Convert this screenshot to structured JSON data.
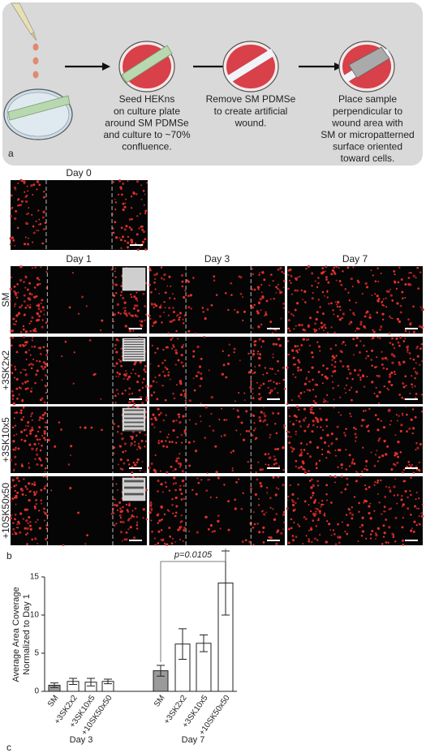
{
  "panel_a": {
    "label": "a",
    "steps": [
      [
        "Seed HEKns",
        "on culture plate",
        "around SM PDMSe",
        "and culture to ~70%",
        "confluence."
      ],
      [
        "Remove SM PDMSe",
        "to create artificial",
        "wound."
      ],
      [
        "Place sample",
        "perpendicular to",
        "wound area with",
        "SM or micropatterned",
        "surface oriented",
        "toward cells."
      ]
    ]
  },
  "panel_b": {
    "label": "b",
    "day0": "Day 0",
    "columns": [
      "Day 1",
      "Day 3",
      "Day 7"
    ],
    "rows": [
      "SM",
      "+3SK2x2",
      "+3SK10x5",
      "+10SK50x50"
    ]
  },
  "chart_data": {
    "type": "bar",
    "panel_label": "c",
    "ylabel": [
      "Average Area Coverage",
      "Normalized to Day 1"
    ],
    "ylim": [
      0,
      15
    ],
    "yticks": [
      0,
      5,
      10,
      15
    ],
    "annotation": "p=0.0105",
    "groups": [
      {
        "name": "Day 3",
        "categories": [
          "SM",
          "+3SK2x2",
          "+3SK10x5",
          "+10SK50x50"
        ],
        "values": [
          0.8,
          1.3,
          1.2,
          1.3
        ],
        "errors": [
          0.3,
          0.4,
          0.5,
          0.3
        ],
        "colors": [
          "#9a9a9a",
          "#ffffff",
          "#ffffff",
          "#ffffff"
        ]
      },
      {
        "name": "Day 7",
        "categories": [
          "SM",
          "+3SK2x2",
          "+3SK10x5",
          "+10SK50x50"
        ],
        "values": [
          2.7,
          6.2,
          6.3,
          14.2
        ],
        "errors": [
          0.7,
          2.0,
          1.1,
          4.2
        ],
        "colors": [
          "#9a9a9a",
          "#ffffff",
          "#ffffff",
          "#ffffff"
        ]
      }
    ]
  }
}
